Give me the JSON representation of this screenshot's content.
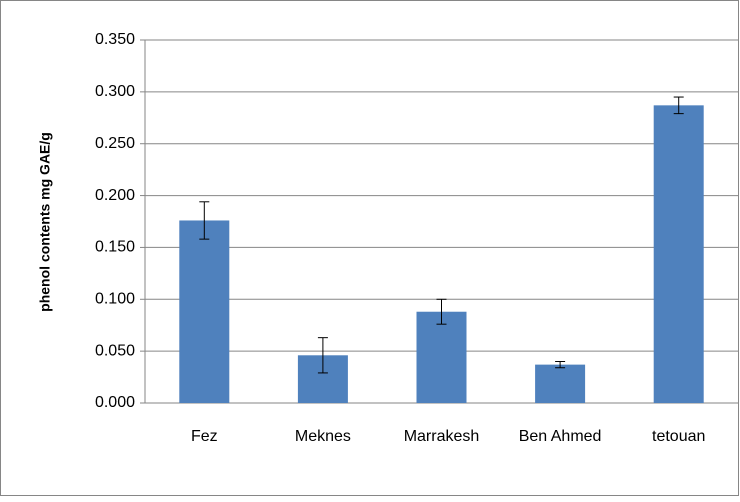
{
  "chart_data": {
    "type": "bar",
    "ylabel": "phenol contents mg GAE/g",
    "categories": [
      "Fez",
      "Meknes",
      "Marrakesh",
      "Ben Ahmed",
      "tetouan"
    ],
    "values": [
      0.176,
      0.046,
      0.088,
      0.037,
      0.287
    ],
    "errors": [
      0.018,
      0.017,
      0.012,
      0.003,
      0.008
    ],
    "color": "#4f81bd",
    "ylim": [
      0,
      0.35
    ],
    "yticks": [
      {
        "value": 0,
        "label": "0.000"
      },
      {
        "value": 0.05,
        "label": "0.050"
      },
      {
        "value": 0.1,
        "label": "0.100"
      },
      {
        "value": 0.15,
        "label": "0.150"
      },
      {
        "value": 0.2,
        "label": "0.200"
      },
      {
        "value": 0.25,
        "label": "0.250"
      },
      {
        "value": 0.3,
        "label": "0.300"
      },
      {
        "value": 0.35,
        "label": "0.350"
      }
    ],
    "grid": true
  }
}
